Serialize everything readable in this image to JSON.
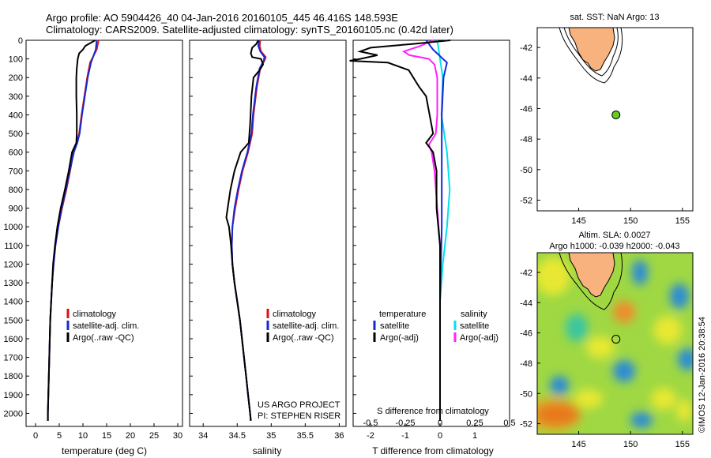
{
  "header": {
    "title_line1": "Argo profile: AO 5904426_40 04-Jan-2016 20160105_445 46.416S 148.593E",
    "title_line2": "Climatology: CARS2009. Satellite-adjusted climatology: synTS_20160105.nc (0.42d later)"
  },
  "colors": {
    "climatology": "#e01010",
    "satellite": "#1428d8",
    "argo": "#000000",
    "salinity_satellite": "#00e0f0",
    "salinity_argo": "#ff20ff",
    "land": "#f7b27e",
    "float_marker": "#66cc22"
  },
  "chart_data": [
    {
      "type": "line",
      "id": "temperature",
      "xlabel": "temperature (deg C)",
      "xlim": [
        -2,
        31
      ],
      "ylim": [
        2070,
        0
      ],
      "xticks": [
        0,
        5,
        10,
        15,
        20,
        25,
        30
      ],
      "yticks": [
        0,
        100,
        200,
        300,
        400,
        500,
        600,
        700,
        800,
        900,
        1000,
        1100,
        1200,
        1300,
        1400,
        1500,
        1600,
        1700,
        1800,
        1900,
        2000
      ],
      "legend": [
        "climatology",
        "satellite-adj. clim.",
        "Argo(..raw -QC)"
      ],
      "series": [
        {
          "name": "climatology",
          "points": [
            [
              13.3,
              0
            ],
            [
              12.9,
              50
            ],
            [
              11.5,
              120
            ],
            [
              10.9,
              200
            ],
            [
              10.3,
              300
            ],
            [
              9.7,
              400
            ],
            [
              9.2,
              500
            ],
            [
              8.7,
              550
            ],
            [
              8.0,
              600
            ],
            [
              7.3,
              700
            ],
            [
              6.5,
              800
            ],
            [
              5.6,
              900
            ],
            [
              4.8,
              1000
            ],
            [
              4.2,
              1100
            ],
            [
              3.8,
              1200
            ],
            [
              3.5,
              1300
            ],
            [
              3.3,
              1400
            ],
            [
              3.1,
              1500
            ],
            [
              3.0,
              1600
            ],
            [
              2.9,
              1700
            ],
            [
              2.8,
              1800
            ],
            [
              2.7,
              1900
            ],
            [
              2.6,
              2000
            ],
            [
              2.6,
              2040
            ]
          ]
        },
        {
          "name": "satellite-adj. clim.",
          "points": [
            [
              12.9,
              0
            ],
            [
              12.7,
              50
            ],
            [
              11.7,
              120
            ],
            [
              11.0,
              200
            ],
            [
              10.4,
              300
            ],
            [
              9.8,
              400
            ],
            [
              9.3,
              500
            ],
            [
              8.8,
              550
            ],
            [
              8.1,
              600
            ],
            [
              7.2,
              700
            ],
            [
              6.4,
              800
            ],
            [
              5.5,
              900
            ],
            [
              4.8,
              1000
            ],
            [
              4.2,
              1100
            ],
            [
              3.8,
              1200
            ],
            [
              3.5,
              1300
            ],
            [
              3.3,
              1400
            ],
            [
              3.1,
              1500
            ],
            [
              3.0,
              1600
            ],
            [
              2.9,
              1700
            ],
            [
              2.8,
              1800
            ],
            [
              2.7,
              1900
            ],
            [
              2.6,
              2000
            ],
            [
              2.6,
              2040
            ]
          ]
        },
        {
          "name": "Argo(..raw -QC)",
          "points": [
            [
              12.6,
              0
            ],
            [
              10.5,
              30
            ],
            [
              10.0,
              50
            ],
            [
              9.2,
              70
            ],
            [
              8.9,
              100
            ],
            [
              8.7,
              150
            ],
            [
              8.6,
              200
            ],
            [
              8.6,
              300
            ],
            [
              8.7,
              400
            ],
            [
              8.7,
              500
            ],
            [
              8.6,
              550
            ],
            [
              7.7,
              600
            ],
            [
              7.0,
              700
            ],
            [
              6.2,
              800
            ],
            [
              5.3,
              900
            ],
            [
              4.6,
              1000
            ],
            [
              4.1,
              1100
            ],
            [
              3.7,
              1200
            ],
            [
              3.5,
              1300
            ],
            [
              3.3,
              1400
            ],
            [
              3.1,
              1500
            ],
            [
              3.0,
              1600
            ],
            [
              2.9,
              1700
            ],
            [
              2.8,
              1800
            ],
            [
              2.7,
              1900
            ],
            [
              2.6,
              2000
            ],
            [
              2.6,
              2040
            ]
          ]
        }
      ]
    },
    {
      "type": "line",
      "id": "salinity",
      "xlabel": "salinity",
      "xlim": [
        33.8,
        36.1
      ],
      "ylim": [
        2070,
        0
      ],
      "xticks": [
        34,
        34.5,
        35,
        35.5,
        36
      ],
      "legend": [
        "climatology",
        "satellite-adj. clim.",
        "Argo(..raw -QC)"
      ],
      "annotation": [
        "US ARGO PROJECT",
        "PI: STEPHEN RISER"
      ],
      "series": [
        {
          "name": "climatology",
          "points": [
            [
              34.84,
              0
            ],
            [
              34.83,
              30
            ],
            [
              34.85,
              60
            ],
            [
              34.92,
              90
            ],
            [
              34.9,
              110
            ],
            [
              34.84,
              150
            ],
            [
              34.79,
              250
            ],
            [
              34.74,
              400
            ],
            [
              34.72,
              500
            ],
            [
              34.66,
              600
            ],
            [
              34.58,
              700
            ],
            [
              34.52,
              800
            ],
            [
              34.47,
              900
            ],
            [
              34.43,
              1000
            ],
            [
              34.42,
              1100
            ],
            [
              34.43,
              1200
            ],
            [
              34.46,
              1300
            ],
            [
              34.5,
              1400
            ],
            [
              34.54,
              1500
            ],
            [
              34.57,
              1600
            ],
            [
              34.6,
              1700
            ],
            [
              34.63,
              1800
            ],
            [
              34.66,
              1900
            ],
            [
              34.69,
              2000
            ],
            [
              34.7,
              2040
            ]
          ]
        },
        {
          "name": "satellite-adj. clim.",
          "points": [
            [
              34.82,
              0
            ],
            [
              34.81,
              30
            ],
            [
              34.84,
              60
            ],
            [
              34.9,
              90
            ],
            [
              34.89,
              110
            ],
            [
              34.83,
              150
            ],
            [
              34.78,
              250
            ],
            [
              34.73,
              400
            ],
            [
              34.71,
              500
            ],
            [
              34.65,
              600
            ],
            [
              34.57,
              700
            ],
            [
              34.51,
              800
            ],
            [
              34.46,
              900
            ],
            [
              34.43,
              1000
            ],
            [
              34.42,
              1100
            ],
            [
              34.43,
              1200
            ],
            [
              34.46,
              1300
            ],
            [
              34.5,
              1400
            ],
            [
              34.54,
              1500
            ],
            [
              34.57,
              1600
            ],
            [
              34.6,
              1700
            ],
            [
              34.63,
              1800
            ],
            [
              34.66,
              1900
            ],
            [
              34.69,
              2000
            ],
            [
              34.7,
              2040
            ]
          ]
        },
        {
          "name": "Argo(..raw -QC)",
          "points": [
            [
              34.81,
              0
            ],
            [
              34.78,
              20
            ],
            [
              34.72,
              40
            ],
            [
              34.7,
              70
            ],
            [
              34.72,
              90
            ],
            [
              34.85,
              100
            ],
            [
              34.88,
              130
            ],
            [
              34.83,
              160
            ],
            [
              34.74,
              200
            ],
            [
              34.71,
              300
            ],
            [
              34.69,
              450
            ],
            [
              34.67,
              550
            ],
            [
              34.55,
              600
            ],
            [
              34.46,
              700
            ],
            [
              34.4,
              800
            ],
            [
              34.36,
              900
            ],
            [
              34.34,
              950
            ],
            [
              34.38,
              1000
            ],
            [
              34.41,
              1100
            ],
            [
              34.43,
              1200
            ],
            [
              34.46,
              1300
            ],
            [
              34.5,
              1400
            ],
            [
              34.54,
              1500
            ],
            [
              34.57,
              1600
            ],
            [
              34.6,
              1700
            ],
            [
              34.63,
              1800
            ],
            [
              34.66,
              1900
            ],
            [
              34.69,
              2000
            ],
            [
              34.7,
              2040
            ]
          ]
        }
      ]
    },
    {
      "type": "line",
      "id": "difference",
      "xlabel": "T difference from climatology",
      "xlabel_top": "S difference from climatology",
      "xlim": [
        -2.5,
        2.0
      ],
      "ylim": [
        2070,
        0
      ],
      "xticks": [
        -2,
        -1,
        0,
        1
      ],
      "xticks_top": [
        "-0.5",
        "-0.25",
        "0",
        "0.25",
        "0.5"
      ],
      "legend_titles": [
        "temperature",
        "salinity"
      ],
      "legend": [
        "satellite",
        "Argo(-adj)",
        "satellite",
        "Argo(-adj)"
      ],
      "series": [
        {
          "name": "temperature satellite",
          "points": [
            [
              -0.4,
              0
            ],
            [
              -0.2,
              50
            ],
            [
              0.2,
              120
            ],
            [
              0.1,
              200
            ],
            [
              0.05,
              400
            ],
            [
              0.05,
              600
            ],
            [
              0.05,
              1000
            ],
            [
              0.0,
              1400
            ],
            [
              0.0,
              2040
            ]
          ]
        },
        {
          "name": "temperature Argo(-adj)",
          "points": [
            [
              0.3,
              0
            ],
            [
              -0.8,
              20
            ],
            [
              -2.0,
              40
            ],
            [
              -2.3,
              60
            ],
            [
              -1.8,
              80
            ],
            [
              -2.3,
              100
            ],
            [
              -2.6,
              110
            ],
            [
              -1.5,
              120
            ],
            [
              -0.9,
              160
            ],
            [
              -0.6,
              250
            ],
            [
              -0.4,
              300
            ],
            [
              -0.3,
              400
            ],
            [
              -0.2,
              500
            ],
            [
              -0.4,
              550
            ],
            [
              -0.2,
              600
            ],
            [
              -0.1,
              700
            ],
            [
              -0.1,
              900
            ],
            [
              0.0,
              1100
            ],
            [
              0.0,
              2040
            ]
          ]
        },
        {
          "name": "salinity satellite",
          "points": [
            [
              -0.02,
              0
            ],
            [
              0.0,
              100
            ],
            [
              0.02,
              200
            ],
            [
              0.01,
              400
            ],
            [
              0.05,
              600
            ],
            [
              0.07,
              800
            ],
            [
              0.05,
              1000
            ],
            [
              0.02,
              1200
            ],
            [
              0.0,
              1400
            ],
            [
              0.0,
              2040
            ]
          ]
        },
        {
          "name": "salinity Argo(-adj)",
          "points": [
            [
              -0.05,
              0
            ],
            [
              -0.14,
              30
            ],
            [
              -0.26,
              60
            ],
            [
              -0.22,
              80
            ],
            [
              -0.08,
              100
            ],
            [
              -0.04,
              130
            ],
            [
              -0.02,
              200
            ],
            [
              -0.02,
              400
            ],
            [
              -0.03,
              500
            ],
            [
              -0.08,
              560
            ],
            [
              -0.06,
              600
            ],
            [
              -0.04,
              700
            ],
            [
              -0.02,
              900
            ],
            [
              0.0,
              1100
            ],
            [
              0.0,
              2040
            ]
          ]
        }
      ]
    }
  ],
  "map_sst": {
    "title": "sat. SST: NaN Argo: 13",
    "xticks": [
      "145",
      "150",
      "155"
    ],
    "yticks": [
      "-42",
      "-44",
      "-46",
      "-48",
      "-50",
      "-52"
    ],
    "xlim": [
      141,
      156
    ],
    "ylim": [
      -52.7,
      -40.7
    ],
    "float_lon": 148.593,
    "float_lat": -46.416
  },
  "map_sla": {
    "title_line1": "Altim. SLA: 0.0027",
    "title_line2": "Argo h1000: -0.039 h2000: -0.043",
    "xticks": [
      "145",
      "150",
      "155"
    ],
    "yticks": [
      "-42",
      "-44",
      "-46",
      "-48",
      "-50",
      "-52"
    ],
    "xlim": [
      141,
      156
    ],
    "ylim": [
      -52.7,
      -40.7
    ],
    "float_lon": 148.593,
    "float_lat": -46.416,
    "credit": "©IMOS 12-Jan-2016 20:38:54"
  }
}
